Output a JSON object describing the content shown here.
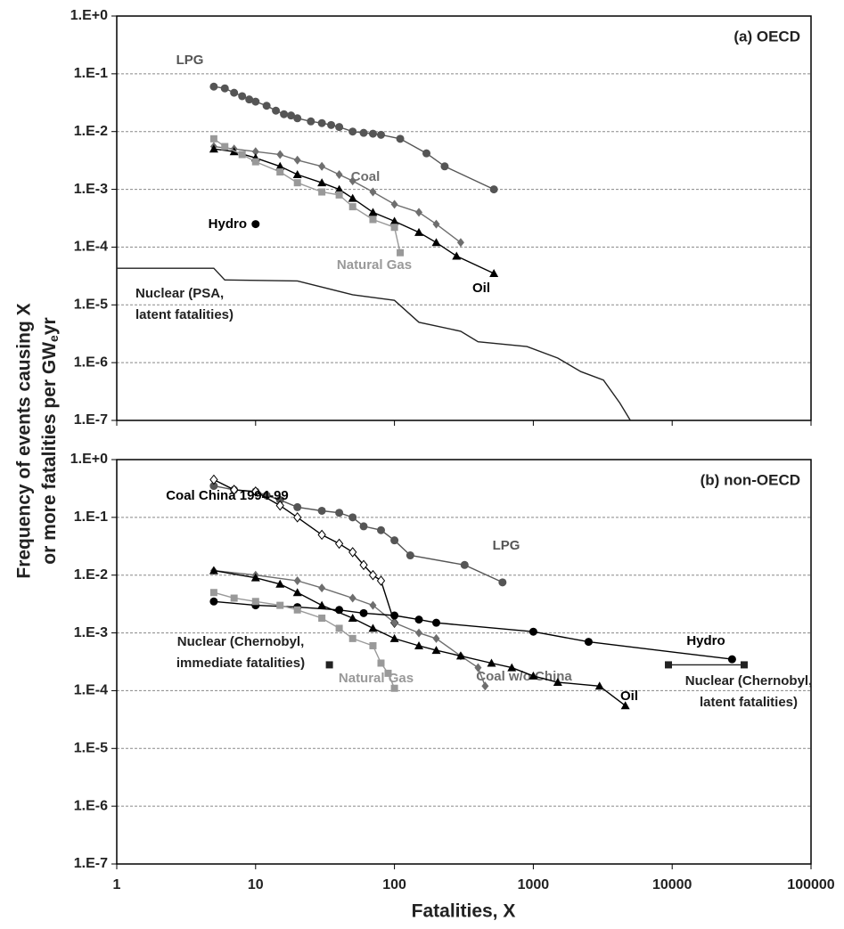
{
  "shared_axes": {
    "ylabel_line1": "Frequency of events causing X",
    "ylabel_line2": [
      "or more fatalities per GW",
      "e",
      "yr"
    ],
    "xlabel": "Fatalities, X"
  },
  "chart_data": [
    {
      "type": "line",
      "title": "(a) OECD",
      "xscale": "log",
      "yscale": "log",
      "grid": true,
      "xtick_labels": false,
      "xlim": [
        1,
        100000
      ],
      "ylim": [
        1e-07,
        1
      ],
      "xticks": [
        1,
        10,
        100,
        1000,
        10000,
        100000
      ],
      "yticks": [
        {
          "value": 1,
          "label": "1.E+0"
        },
        {
          "value": 0.1,
          "label": "1.E-1"
        },
        {
          "value": 0.01,
          "label": "1.E-2"
        },
        {
          "value": 0.001,
          "label": "1.E-3"
        },
        {
          "value": 0.0001,
          "label": "1.E-4"
        },
        {
          "value": 1e-05,
          "label": "1.E-5"
        },
        {
          "value": 1e-06,
          "label": "1.E-6"
        },
        {
          "value": 1e-07,
          "label": "1.E-7"
        }
      ],
      "series": [
        {
          "label_lines": [
            "LPG"
          ],
          "color": "#555555",
          "marker": "circle",
          "x": [
            5,
            6,
            7,
            8,
            9,
            10,
            12,
            14,
            16,
            18,
            20,
            25,
            30,
            35,
            40,
            50,
            60,
            70,
            80,
            110,
            170,
            230,
            520
          ],
          "values": [
            0.06,
            0.056,
            0.047,
            0.041,
            0.036,
            0.033,
            0.028,
            0.023,
            0.02,
            0.019,
            0.017,
            0.015,
            0.014,
            0.013,
            0.012,
            0.01,
            0.0095,
            0.0092,
            0.0088,
            0.0075,
            0.0042,
            0.0025,
            0.001
          ]
        },
        {
          "label_lines": [
            "Coal"
          ],
          "color": "#6e6e6e",
          "marker": "diamond",
          "x": [
            5,
            7,
            10,
            15,
            20,
            30,
            40,
            50,
            70,
            100,
            150,
            200,
            300
          ],
          "values": [
            0.0055,
            0.005,
            0.0045,
            0.004,
            0.0032,
            0.0025,
            0.0018,
            0.0014,
            0.0009,
            0.00055,
            0.0004,
            0.00025,
            0.00012
          ]
        },
        {
          "label_lines": [
            "Oil"
          ],
          "color": "#000000",
          "marker": "triangle",
          "x": [
            5,
            7,
            10,
            15,
            20,
            30,
            40,
            50,
            70,
            100,
            150,
            200,
            280,
            520
          ],
          "values": [
            0.005,
            0.0045,
            0.0035,
            0.0025,
            0.0018,
            0.0013,
            0.001,
            0.0007,
            0.0004,
            0.00028,
            0.00018,
            0.00012,
            7e-05,
            3.5e-05
          ]
        },
        {
          "label_lines": [
            "Natural Gas"
          ],
          "color": "#999999",
          "marker": "square",
          "x": [
            5,
            6,
            8,
            10,
            15,
            20,
            30,
            40,
            50,
            70,
            100,
            110
          ],
          "values": [
            0.0075,
            0.0055,
            0.004,
            0.003,
            0.002,
            0.0013,
            0.0009,
            0.0008,
            0.0005,
            0.0003,
            0.00022,
            8e-05
          ]
        },
        {
          "label_lines": [
            "Hydro"
          ],
          "color": "#000000",
          "marker": "circle",
          "x": [
            10
          ],
          "values": [
            0.00025
          ]
        },
        {
          "label_lines": [
            "Nuclear (PSA,",
            "latent fatalities)"
          ],
          "color": "#222222",
          "marker": "none",
          "x": [
            1,
            5,
            6,
            20,
            50,
            100,
            150,
            300,
            400,
            900,
            1500,
            2200,
            3200,
            4200,
            5000
          ],
          "values": [
            4.3e-05,
            4.3e-05,
            2.7e-05,
            2.6e-05,
            1.5e-05,
            1.2e-05,
            5e-06,
            3.5e-06,
            2.3e-06,
            1.9e-06,
            1.2e-06,
            7e-07,
            5e-07,
            2e-07,
            1e-07
          ]
        }
      ]
    },
    {
      "type": "line",
      "title": "(b) non-OECD",
      "xscale": "log",
      "yscale": "log",
      "grid": true,
      "xtick_labels": true,
      "xlim": [
        1,
        100000
      ],
      "ylim": [
        1e-07,
        1
      ],
      "xticks": [
        1,
        10,
        100,
        1000,
        10000,
        100000
      ],
      "yticks": [
        {
          "value": 1,
          "label": "1.E+0"
        },
        {
          "value": 0.1,
          "label": "1.E-1"
        },
        {
          "value": 0.01,
          "label": "1.E-2"
        },
        {
          "value": 0.001,
          "label": "1.E-3"
        },
        {
          "value": 0.0001,
          "label": "1.E-4"
        },
        {
          "value": 1e-05,
          "label": "1.E-5"
        },
        {
          "value": 1e-06,
          "label": "1.E-6"
        },
        {
          "value": 1e-07,
          "label": "1.E-7"
        }
      ],
      "series": [
        {
          "label_lines": [
            "LPG"
          ],
          "color": "#555555",
          "marker": "circle",
          "x": [
            5,
            7,
            10,
            12,
            15,
            20,
            30,
            40,
            50,
            60,
            80,
            100,
            130,
            320,
            600
          ],
          "values": [
            0.35,
            0.3,
            0.28,
            0.24,
            0.2,
            0.15,
            0.13,
            0.12,
            0.1,
            0.07,
            0.06,
            0.04,
            0.022,
            0.015,
            0.0075
          ]
        },
        {
          "label_lines": [
            "Coal China 1994-99"
          ],
          "color": "#000000",
          "marker": "diamond-open",
          "x": [
            5,
            7,
            10,
            15,
            20,
            30,
            40,
            50,
            60,
            70,
            80,
            100
          ],
          "values": [
            0.45,
            0.3,
            0.28,
            0.16,
            0.1,
            0.05,
            0.035,
            0.025,
            0.015,
            0.01,
            0.008,
            0.0015
          ]
        },
        {
          "label_lines": [
            "Coal w/o China"
          ],
          "color": "#6e6e6e",
          "marker": "diamond",
          "x": [
            5,
            10,
            20,
            30,
            50,
            70,
            100,
            150,
            200,
            300,
            400,
            450
          ],
          "values": [
            0.012,
            0.01,
            0.008,
            0.006,
            0.004,
            0.003,
            0.0015,
            0.001,
            0.0008,
            0.0004,
            0.00025,
            0.00012
          ]
        },
        {
          "label_lines": [
            "Oil"
          ],
          "color": "#000000",
          "marker": "triangle",
          "x": [
            5,
            10,
            15,
            20,
            30,
            50,
            70,
            100,
            150,
            200,
            300,
            500,
            700,
            1000,
            1500,
            3000,
            4600
          ],
          "values": [
            0.012,
            0.009,
            0.007,
            0.005,
            0.003,
            0.0018,
            0.0012,
            0.0008,
            0.0006,
            0.0005,
            0.0004,
            0.0003,
            0.00025,
            0.00018,
            0.00014,
            0.00012,
            5.5e-05
          ]
        },
        {
          "label_lines": [
            "Hydro"
          ],
          "color": "#000000",
          "marker": "circle",
          "x": [
            5,
            10,
            20,
            40,
            60,
            100,
            150,
            200,
            1000,
            2500,
            27000
          ],
          "values": [
            0.0035,
            0.003,
            0.0028,
            0.0025,
            0.0022,
            0.002,
            0.0017,
            0.0015,
            0.00105,
            0.0007,
            0.00035
          ]
        },
        {
          "label_lines": [
            "Natural Gas"
          ],
          "color": "#999999",
          "marker": "square",
          "x": [
            5,
            7,
            10,
            15,
            20,
            30,
            40,
            50,
            70,
            80,
            90,
            100
          ],
          "values": [
            0.005,
            0.004,
            0.0035,
            0.003,
            0.0025,
            0.0018,
            0.0012,
            0.0008,
            0.0006,
            0.0003,
            0.0002,
            0.00011
          ]
        },
        {
          "label_lines": [
            "Nuclear (Chernobyl,",
            "immediate fatalities)"
          ],
          "color": "#222222",
          "marker": "square",
          "x": [
            34
          ],
          "values": [
            0.00028
          ]
        },
        {
          "label_lines": [
            "Nuclear (Chernobyl,",
            "latent fatalities)"
          ],
          "color": "#222222",
          "marker": "square",
          "x": [
            9400,
            33000
          ],
          "values": [
            0.00028,
            0.00028
          ]
        }
      ]
    }
  ]
}
